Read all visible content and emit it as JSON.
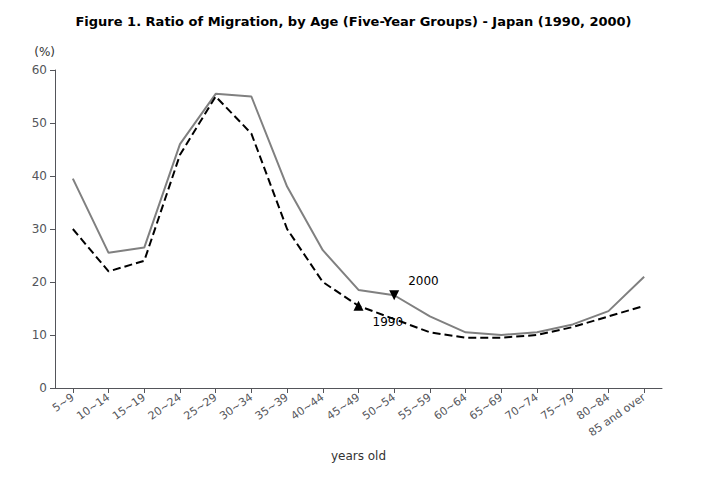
{
  "chart_data": {
    "type": "line",
    "title": "Figure 1. Ratio of Migration, by Age (Five-Year Groups) - Japan (1990, 2000)",
    "ylabel": "(%)",
    "xlabel": "years old",
    "categories": [
      "5~9",
      "10~14",
      "15~19",
      "20~24",
      "25~29",
      "30~34",
      "35~39",
      "40~44",
      "45~49",
      "50~54",
      "55~59",
      "60~64",
      "65~69",
      "70~74",
      "75~79",
      "80~84",
      "85 and over"
    ],
    "series": [
      {
        "color": "#808080",
        "line_style": "solid",
        "values": [
          39.5,
          25.5,
          26.5,
          46.0,
          55.5,
          55.0,
          38.0,
          26.0,
          18.5,
          17.5,
          13.5,
          10.5,
          10.0,
          10.5,
          12.0,
          14.5,
          21.0
        ],
        "annotation": {
          "text": "2000",
          "category": "50~54",
          "marker": "triangle-down"
        }
      },
      {
        "color": "#000000",
        "line_style": "dashed",
        "values": [
          30.0,
          22.0,
          24.0,
          44.0,
          55.0,
          48.0,
          30.0,
          20.0,
          15.5,
          13.0,
          10.5,
          9.5,
          9.5,
          10.0,
          11.5,
          13.5,
          15.5
        ],
        "annotation": {
          "text": "1990",
          "category": "45~49",
          "marker": "triangle-up"
        }
      }
    ],
    "ylim": [
      0,
      60
    ],
    "yticks": [
      0,
      10,
      20,
      30,
      40,
      50,
      60
    ],
    "grid": false
  }
}
